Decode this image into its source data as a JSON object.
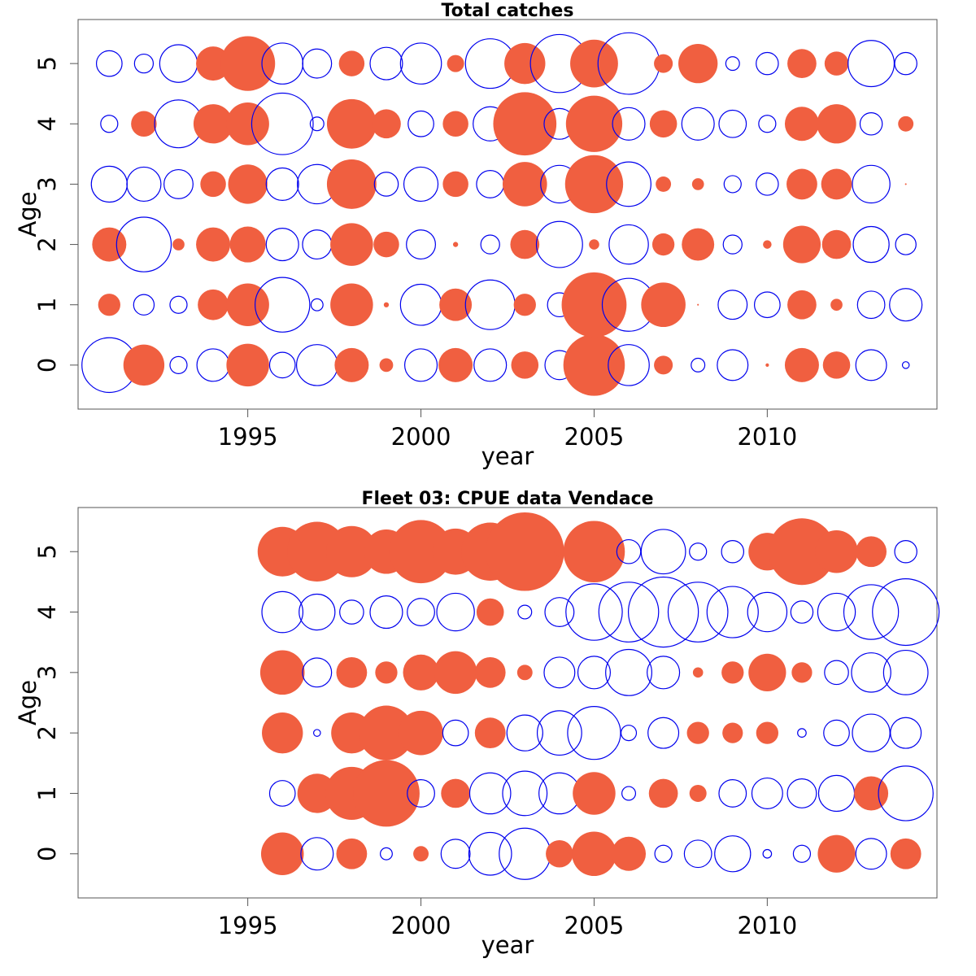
{
  "chart_data": [
    {
      "type": "scatter",
      "subtype": "bubble",
      "title": "Total catches",
      "xlabel": "year",
      "ylabel": "Age",
      "xlim": [
        1990.1,
        2014.9
      ],
      "ylim": [
        -0.73,
        5.73
      ],
      "x_ticks": [
        1995,
        2000,
        2005,
        2010
      ],
      "y_ticks": [
        0,
        1,
        2,
        3,
        4,
        5
      ],
      "colors": {
        "positive": "#f05f40",
        "negative": "#0000ee"
      },
      "encoding": "size = magnitude of residual; filled red = positive, open blue = negative",
      "years": [
        1991,
        1992,
        1993,
        1994,
        1995,
        1996,
        1997,
        1998,
        1999,
        2000,
        2001,
        2002,
        2003,
        2004,
        2005,
        2006,
        2007,
        2008,
        2009,
        2010,
        2011,
        2012,
        2013,
        2014
      ],
      "ages": [
        0,
        1,
        2,
        3,
        4,
        5
      ],
      "values": {
        "0": [
          -3.2,
          2.4,
          -1.0,
          -1.9,
          2.5,
          -1.5,
          -2.4,
          2.0,
          0.8,
          -1.9,
          2.0,
          -1.9,
          1.6,
          -1.7,
          3.6,
          -2.4,
          1.1,
          -0.8,
          -1.8,
          0.2,
          2.0,
          1.6,
          -1.8,
          -0.4
        ],
        "1": [
          1.3,
          -1.2,
          -1.0,
          1.8,
          2.5,
          -3.2,
          -0.7,
          2.5,
          0.3,
          -2.4,
          1.9,
          -2.9,
          1.3,
          -1.4,
          3.8,
          -3.1,
          2.6,
          0.1,
          -1.7,
          -1.5,
          1.7,
          0.7,
          -1.6,
          -1.9
        ],
        "2": [
          2.0,
          -3.2,
          0.7,
          2.0,
          2.1,
          -1.9,
          -1.7,
          2.5,
          1.5,
          -1.7,
          0.3,
          -1.1,
          1.7,
          -2.7,
          0.6,
          -2.3,
          1.3,
          1.9,
          -1.1,
          0.5,
          2.2,
          1.7,
          -2.1,
          -1.2
        ],
        "3": [
          -2.1,
          -2.0,
          -1.7,
          1.5,
          2.3,
          -1.9,
          -2.3,
          2.9,
          -1.4,
          -2.0,
          1.5,
          -1.6,
          2.6,
          -2.2,
          3.4,
          -2.6,
          0.9,
          0.7,
          -1.0,
          -1.3,
          1.8,
          1.8,
          -2.2,
          0.1
        ],
        "4": [
          -1.0,
          1.5,
          -2.8,
          2.3,
          2.5,
          -3.6,
          -0.8,
          2.9,
          1.7,
          -1.5,
          1.5,
          -2.0,
          3.7,
          -1.8,
          3.3,
          -1.9,
          1.6,
          -1.9,
          -1.6,
          -1.0,
          2.0,
          2.3,
          -1.3,
          0.9
        ],
        "5": [
          -1.5,
          -1.1,
          -2.2,
          2.0,
          3.2,
          -2.4,
          -1.7,
          1.5,
          -1.9,
          -2.4,
          1.0,
          -2.9,
          2.4,
          -3.4,
          2.8,
          -3.6,
          1.1,
          2.3,
          -0.8,
          -1.3,
          1.7,
          1.4,
          -2.7,
          -1.3
        ]
      }
    },
    {
      "type": "scatter",
      "subtype": "bubble",
      "title": "Fleet 03:  CPUE data Vendace",
      "xlabel": "year",
      "ylabel": "Age",
      "xlim": [
        1990.1,
        2014.9
      ],
      "ylim": [
        -0.73,
        5.73
      ],
      "x_ticks": [
        1995,
        2000,
        2005,
        2010
      ],
      "y_ticks": [
        0,
        1,
        2,
        3,
        4,
        5
      ],
      "colors": {
        "positive": "#f05f40",
        "negative": "#0000ee"
      },
      "encoding": "size = magnitude of residual; filled red = positive, open blue = negative",
      "years": [
        1996,
        1997,
        1998,
        1999,
        2000,
        2001,
        2002,
        2003,
        2004,
        2005,
        2006,
        2007,
        2008,
        2009,
        2010,
        2011,
        2012,
        2013,
        2014
      ],
      "ages": [
        0,
        1,
        2,
        3,
        4,
        5
      ],
      "values": {
        "0": [
          2.5,
          -1.9,
          1.8,
          -0.7,
          0.9,
          -1.7,
          -2.5,
          -3.0,
          1.6,
          2.6,
          2.0,
          -1.0,
          -1.6,
          -2.1,
          -0.5,
          -1.0,
          2.2,
          -1.8,
          1.8
        ],
        "1": [
          -1.5,
          2.3,
          3.1,
          3.9,
          -1.6,
          1.7,
          -2.4,
          -2.6,
          -2.4,
          2.5,
          -0.8,
          1.7,
          1.0,
          -1.6,
          -1.8,
          -1.7,
          -2.1,
          2.0,
          -3.2
        ],
        "2": [
          2.4,
          -0.4,
          2.4,
          3.2,
          2.6,
          -1.5,
          1.8,
          -2.1,
          -2.6,
          -3.1,
          -0.9,
          -1.8,
          1.3,
          1.2,
          1.3,
          -0.5,
          -1.5,
          -2.2,
          -1.8
        ],
        "3": [
          2.6,
          -1.7,
          1.8,
          1.3,
          2.1,
          2.5,
          1.8,
          0.9,
          -1.8,
          -1.9,
          -2.7,
          -1.9,
          0.6,
          1.3,
          2.2,
          1.2,
          -1.4,
          -2.3,
          -2.6
        ],
        "4": [
          -2.4,
          -2.1,
          -1.4,
          -1.9,
          -1.6,
          -2.2,
          1.6,
          -0.8,
          -1.7,
          -3.3,
          -3.5,
          -4.1,
          -3.5,
          -3.0,
          -2.3,
          -1.3,
          -2.2,
          -3.2,
          -3.9
        ],
        "5": [
          2.9,
          3.5,
          3.0,
          2.6,
          3.7,
          2.7,
          3.4,
          4.6,
          0.6,
          3.6,
          -1.4,
          -2.6,
          -1.0,
          -1.3,
          2.2,
          3.9,
          2.5,
          1.8,
          -1.3
        ]
      }
    }
  ]
}
